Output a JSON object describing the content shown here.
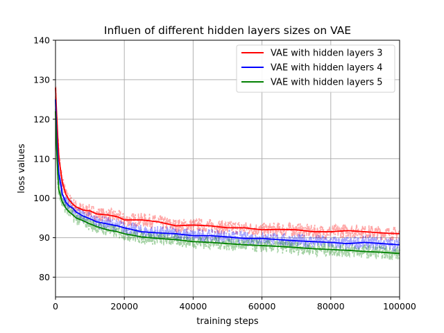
{
  "chart_data": {
    "type": "line",
    "title": "Influen of different hidden layers sizes on VAE",
    "xlabel": "training steps",
    "ylabel": "loss values",
    "xlim": [
      0,
      100000
    ],
    "ylim": [
      75,
      140
    ],
    "xticks": [
      0,
      20000,
      40000,
      60000,
      80000,
      100000
    ],
    "yticks": [
      80,
      90,
      100,
      110,
      120,
      130,
      140
    ],
    "grid": true,
    "legend_position": "top-right",
    "series": [
      {
        "name": "VAE with hidden layers 3",
        "color": "#ff0000",
        "x": [
          0,
          500,
          1000,
          2000,
          3000,
          4000,
          5000,
          6000,
          8000,
          10000,
          12000,
          15000,
          18000,
          20000,
          25000,
          28000,
          30000,
          35000,
          40000,
          45000,
          50000,
          55000,
          60000,
          65000,
          70000,
          75000,
          80000,
          85000,
          90000,
          95000,
          100000
        ],
        "y": [
          128,
          118,
          110,
          104,
          101,
          99.5,
          98.5,
          97.8,
          97,
          96.8,
          96,
          95.8,
          95.3,
          94.5,
          94.5,
          94.2,
          94,
          93,
          93.2,
          93,
          92.5,
          92.5,
          92,
          92.1,
          92,
          91.5,
          91.5,
          91.8,
          91.5,
          91.2,
          91
        ]
      },
      {
        "name": "VAE with hidden layers 4",
        "color": "#0000ff",
        "x": [
          0,
          500,
          1000,
          2000,
          3000,
          4000,
          5000,
          6000,
          8000,
          10000,
          12000,
          15000,
          18000,
          20000,
          25000,
          30000,
          35000,
          40000,
          45000,
          50000,
          55000,
          60000,
          65000,
          70000,
          75000,
          80000,
          85000,
          90000,
          95000,
          100000
        ],
        "y": [
          125,
          112,
          106,
          101,
          99,
          98,
          97.5,
          96.5,
          95.5,
          94.8,
          94,
          93.5,
          93,
          92.5,
          91.5,
          91.2,
          91,
          90.5,
          90.5,
          90.2,
          89.8,
          89.8,
          89.5,
          89.2,
          89,
          88.8,
          88.5,
          88.8,
          88.5,
          88.2
        ]
      },
      {
        "name": "VAE with hidden layers 5",
        "color": "#008000",
        "x": [
          0,
          500,
          1000,
          2000,
          3000,
          4000,
          5000,
          6000,
          8000,
          10000,
          12000,
          15000,
          18000,
          20000,
          25000,
          30000,
          35000,
          40000,
          45000,
          50000,
          55000,
          60000,
          65000,
          70000,
          75000,
          80000,
          85000,
          90000,
          95000,
          100000
        ],
        "y": [
          122,
          108,
          102,
          99,
          97.5,
          96.5,
          95.8,
          95,
          94.3,
          93.5,
          92.8,
          92,
          91.5,
          91,
          90.2,
          89.8,
          89.5,
          89,
          88.8,
          88.5,
          88.2,
          88,
          87.8,
          87.5,
          87.2,
          87,
          86.8,
          86.5,
          86.3,
          86
        ]
      }
    ]
  }
}
